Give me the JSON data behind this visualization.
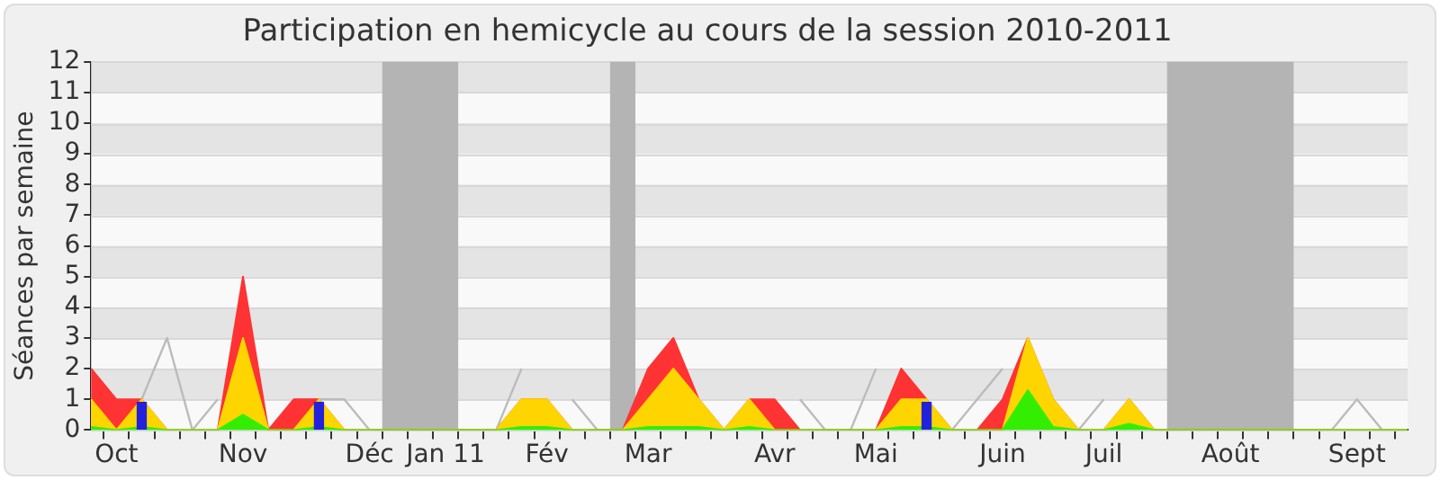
{
  "chart_data": {
    "type": "area",
    "title": "Participation en hemicycle au cours de la session 2010-2011",
    "ylabel": "Séances par semaine",
    "stacked": true,
    "marker": "none",
    "grid": "y",
    "categories": [
      null,
      "Oct",
      null,
      null,
      null,
      null,
      "Nov",
      null,
      null,
      null,
      null,
      "Déc",
      null,
      null,
      "Jan 11",
      null,
      null,
      null,
      "Fév",
      null,
      null,
      null,
      "Mar",
      null,
      null,
      null,
      null,
      "Avr",
      null,
      null,
      null,
      "Mai",
      null,
      null,
      null,
      null,
      "Juin",
      null,
      null,
      null,
      "Juil",
      null,
      null,
      null,
      null,
      "Août",
      null,
      null,
      null,
      null,
      "Sept",
      null,
      null
    ],
    "ylim": [
      0,
      12
    ],
    "yticks": [
      0,
      1,
      2,
      3,
      4,
      5,
      6,
      7,
      8,
      9,
      10,
      11,
      12
    ],
    "series": [
      {
        "color": "#33ee00",
        "values": [
          0.1,
          0,
          0.1,
          0,
          0,
          0,
          0.5,
          0,
          0,
          0.1,
          0,
          0,
          0,
          0,
          0,
          0,
          0,
          0.1,
          0.1,
          0,
          0,
          0,
          0.1,
          0.1,
          0.1,
          0,
          0.1,
          0,
          0,
          0,
          0,
          0,
          0.1,
          0.1,
          0,
          0,
          0,
          1.3,
          0.1,
          0,
          0,
          0.2,
          0,
          0,
          0,
          0,
          0,
          0,
          0,
          0,
          0,
          0,
          0
        ]
      },
      {
        "color": "#ffd500",
        "values": [
          0.9,
          0,
          0.9,
          0,
          0,
          0,
          2.5,
          0,
          0,
          0.9,
          0,
          0,
          0,
          0,
          0,
          0,
          0,
          0.9,
          0.9,
          0,
          0,
          0,
          0.9,
          1.9,
          0.9,
          0,
          0.9,
          0,
          0,
          0,
          0,
          0,
          0.9,
          0.9,
          0,
          0,
          0,
          1.7,
          0.9,
          0,
          0,
          0.8,
          0,
          0,
          0,
          0,
          0,
          0,
          0,
          0,
          0,
          0,
          0
        ]
      },
      {
        "color": "#ff3333",
        "values": [
          1,
          1,
          0,
          0,
          0,
          0,
          2,
          0,
          1,
          0,
          0,
          0,
          0,
          0,
          0,
          0,
          0,
          0,
          0,
          0,
          0,
          0,
          1,
          1,
          0,
          0,
          0,
          1,
          0,
          0,
          0,
          0,
          1,
          0,
          0,
          0,
          1,
          0,
          0,
          0,
          0,
          0,
          0,
          0,
          0,
          0,
          0,
          0,
          0,
          0,
          0,
          0,
          0
        ]
      },
      {
        "type": "line",
        "color": "#bbbbbb",
        "values": [
          null,
          null,
          1,
          3,
          0,
          1,
          null,
          null,
          1,
          1,
          1,
          0,
          0,
          0,
          0,
          0,
          0,
          2,
          null,
          1,
          0,
          0,
          null,
          null,
          null,
          null,
          null,
          null,
          1,
          0,
          0,
          2,
          null,
          null,
          0,
          1,
          2,
          null,
          null,
          0,
          1,
          null,
          0,
          0,
          0,
          0,
          0,
          0,
          0,
          0,
          1,
          0,
          0
        ]
      },
      {
        "type": "bar",
        "color": "#2222dd",
        "values": [
          null,
          null,
          0.9,
          null,
          null,
          null,
          null,
          null,
          null,
          0.9,
          null,
          null,
          null,
          null,
          null,
          null,
          null,
          null,
          null,
          null,
          null,
          null,
          null,
          null,
          null,
          null,
          null,
          null,
          null,
          null,
          null,
          null,
          null,
          0.9,
          null,
          null,
          null,
          null,
          null,
          null,
          null,
          null,
          null,
          null,
          null,
          null,
          null,
          null,
          null,
          null,
          null,
          null,
          null
        ]
      }
    ]
  }
}
